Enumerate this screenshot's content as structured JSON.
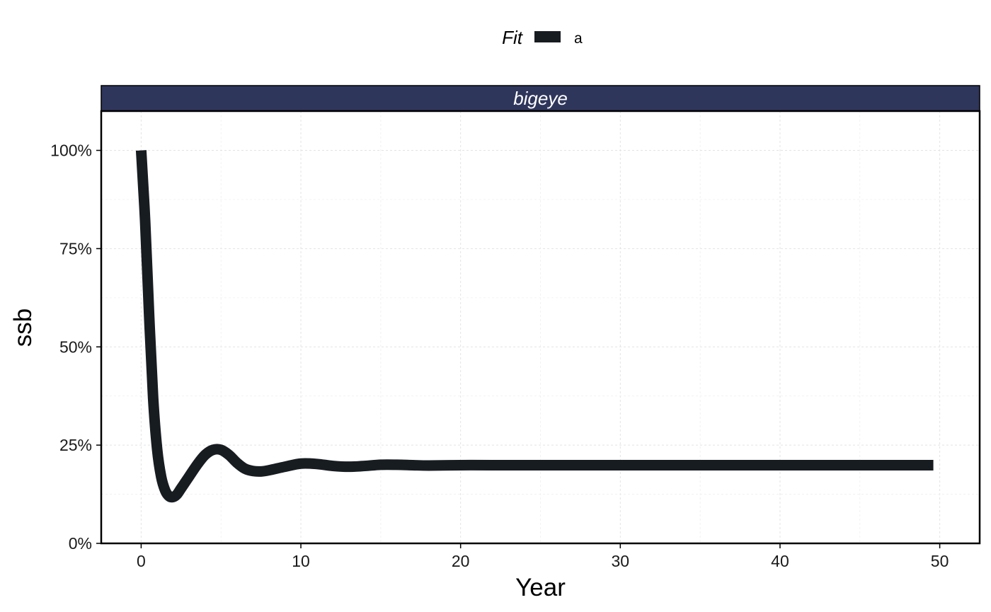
{
  "chart_data": {
    "type": "line",
    "facet_label": "bigeye",
    "xlabel": "Year",
    "ylabel": "ssb",
    "xlim": [
      -2.5,
      52.5
    ],
    "ylim": [
      0,
      1.1
    ],
    "x_ticks": [
      0,
      10,
      20,
      30,
      40,
      50
    ],
    "x_tick_labels": [
      "0",
      "10",
      "20",
      "30",
      "40",
      "50"
    ],
    "y_ticks": [
      0,
      0.25,
      0.5,
      0.75,
      1.0
    ],
    "y_tick_labels": [
      "0%",
      "25%",
      "50%",
      "75%",
      "100%"
    ],
    "grid": true,
    "legend": {
      "title": "Fit",
      "position": "top",
      "entries": [
        "a"
      ]
    },
    "series": [
      {
        "name": "a",
        "color": "#171c21",
        "x": [
          0,
          0.25,
          0.5,
          0.75,
          1,
          1.25,
          1.5,
          1.75,
          2,
          2.25,
          2.5,
          3,
          3.5,
          4,
          4.5,
          5,
          5.5,
          6,
          6.5,
          7,
          7.5,
          8,
          9,
          10,
          11,
          12,
          13,
          14,
          15,
          16,
          17,
          18,
          20,
          22,
          25,
          30,
          35,
          40,
          45,
          49.6
        ],
        "y": [
          1.0,
          0.82,
          0.58,
          0.37,
          0.24,
          0.17,
          0.135,
          0.12,
          0.118,
          0.125,
          0.14,
          0.17,
          0.2,
          0.225,
          0.238,
          0.238,
          0.225,
          0.205,
          0.19,
          0.184,
          0.183,
          0.186,
          0.195,
          0.203,
          0.202,
          0.197,
          0.195,
          0.197,
          0.2,
          0.2,
          0.199,
          0.198,
          0.199,
          0.199,
          0.199,
          0.199,
          0.199,
          0.199,
          0.199,
          0.199
        ]
      }
    ]
  }
}
